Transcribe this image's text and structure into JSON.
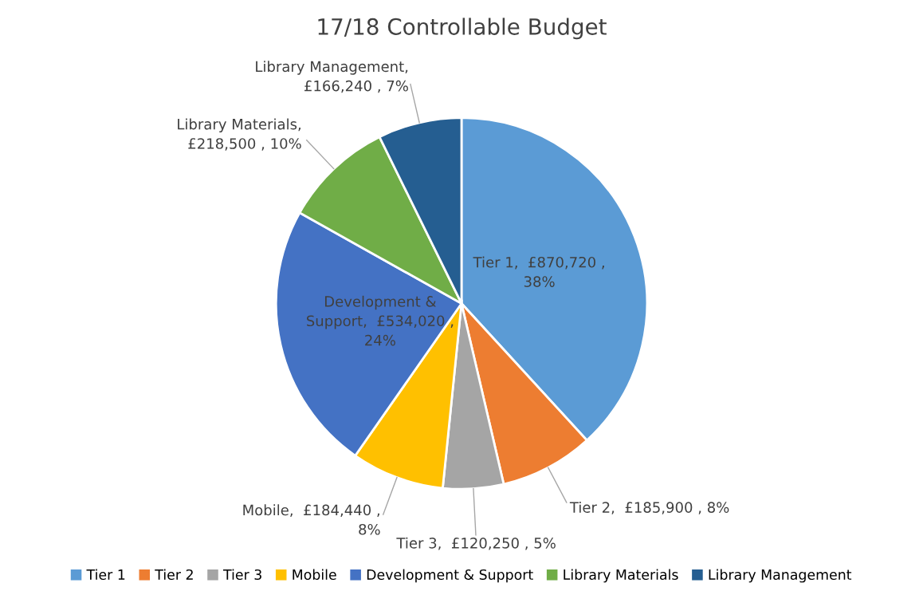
{
  "chart_data": {
    "type": "pie",
    "title": "17/18 Controllable Budget",
    "categories": [
      "Tier 1",
      "Tier 2",
      "Tier 3",
      "Mobile",
      "Development & Support",
      "Library Materials",
      "Library Management"
    ],
    "values": [
      870720,
      185900,
      120250,
      184440,
      534020,
      218500,
      166240
    ],
    "value_labels": [
      "Tier 1,  £870,720 ,\n38%",
      "Tier 2,  £185,900 , 8%",
      "Tier 3,  £120,250 , 5%",
      "Mobile,  £184,440 ,\n8%",
      "Development &\nSupport,  £534,020 ,\n24%",
      "Library Materials,\n£218,500 , 10%",
      "Library Management,\n£166,240 , 7%"
    ],
    "colors": [
      "#5b9bd5",
      "#ed7d31",
      "#a5a5a5",
      "#ffc000",
      "#4472c4",
      "#70ad47",
      "#255e91"
    ],
    "legend": "bottom"
  }
}
